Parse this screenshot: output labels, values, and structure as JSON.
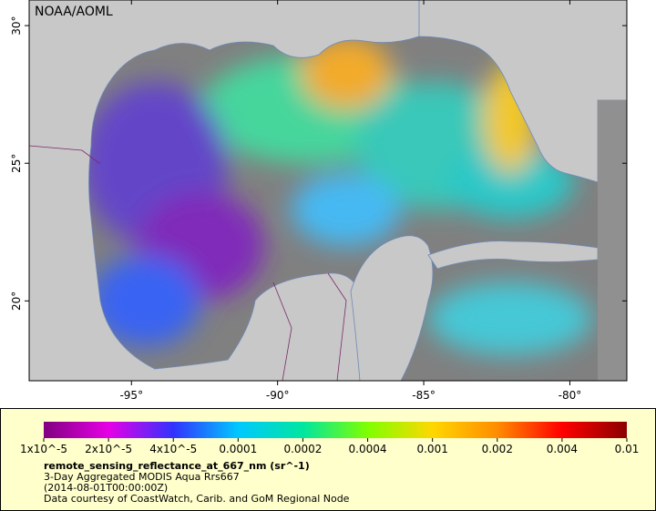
{
  "map": {
    "watermark": "NOAA/AOML",
    "lon_range": [
      -98.5,
      -78.05
    ],
    "lat_range": [
      17.1,
      30.93
    ],
    "lon_ticks": [
      {
        "value": -95,
        "label": "-95°"
      },
      {
        "value": -90,
        "label": "-90°"
      },
      {
        "value": -85,
        "label": "-85°"
      },
      {
        "value": -80,
        "label": "-80°"
      }
    ],
    "lat_ticks": [
      {
        "value": 30,
        "label": "30°"
      },
      {
        "value": 25,
        "label": "25°"
      },
      {
        "value": 20,
        "label": "20°"
      }
    ]
  },
  "legend": {
    "colors": [
      "#800080",
      "#e600e6",
      "#3232ff",
      "#00c8ff",
      "#00e6a0",
      "#80ff00",
      "#ffd700",
      "#ff8c00",
      "#ff0000",
      "#8b0000"
    ],
    "ticks": [
      {
        "value": 1e-05,
        "label": "1x10^-5"
      },
      {
        "value": 2e-05,
        "label": "2x10^-5"
      },
      {
        "value": 4e-05,
        "label": "4x10^-5"
      },
      0.0001,
      0.0002,
      0.0004,
      0.001,
      0.002,
      0.004,
      0.01
    ],
    "variable": "remote_sensing_reflectance_at_667_nm (sr^-1)",
    "lines": [
      "3-Day Aggregated MODIS Aqua Rrs667",
      "(2014-08-01T00:00:00Z)",
      "Data courtesy of CoastWatch, Carib. and GoM Regional Node"
    ]
  }
}
